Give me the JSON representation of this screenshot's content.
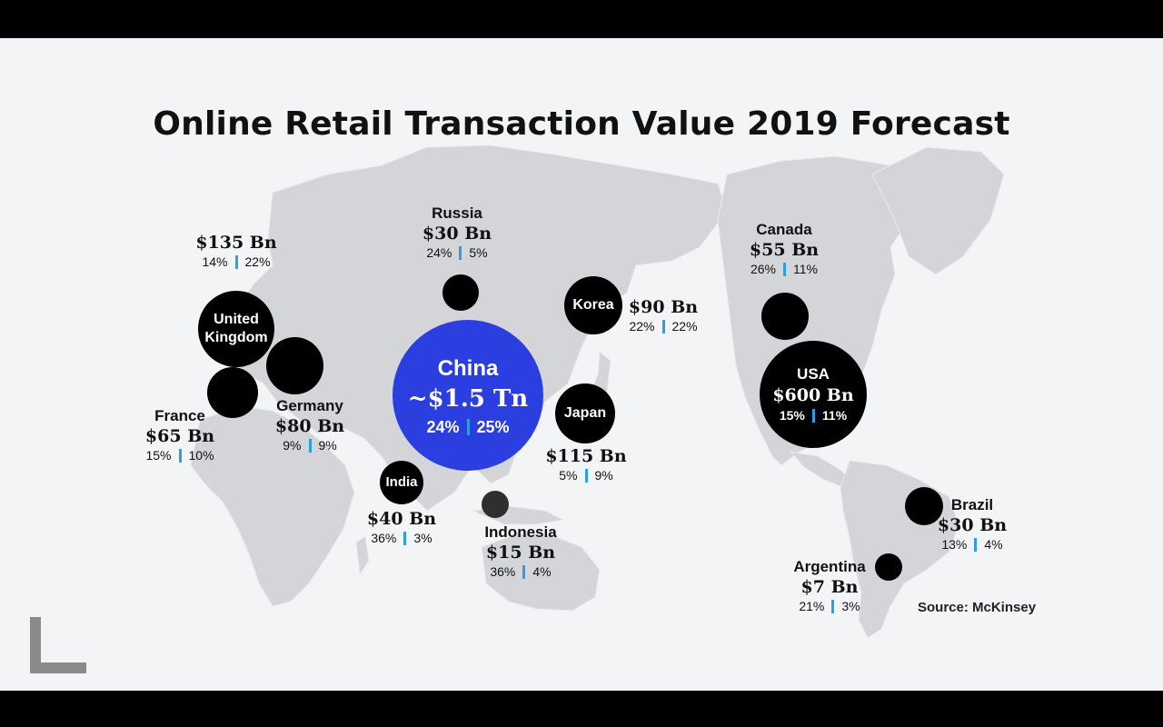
{
  "title": "Online Retail Transaction Value 2019 Forecast",
  "source": "Source: McKinsey",
  "colors": {
    "accent_bar": "#2a9fe6",
    "china_bubble": "#2b3fe0",
    "bubble": "#000000",
    "land": "#d3d5d8"
  },
  "markets": {
    "uk": {
      "name": "United Kingdom",
      "name_line1": "United",
      "name_line2": "Kingdom",
      "value": "$135 Bn",
      "pct_a": "14%",
      "pct_b": "22%"
    },
    "russia": {
      "name": "Russia",
      "value": "$30 Bn",
      "pct_a": "24%",
      "pct_b": "5%"
    },
    "korea": {
      "name": "Korea",
      "value": "$90 Bn",
      "pct_a": "22%",
      "pct_b": "22%"
    },
    "canada": {
      "name": "Canada",
      "value": "$55 Bn",
      "pct_a": "26%",
      "pct_b": "11%"
    },
    "china": {
      "name": "China",
      "value": "~$1.5 Tn",
      "pct_a": "24%",
      "pct_b": "25%"
    },
    "france": {
      "name": "France",
      "value": "$65 Bn",
      "pct_a": "15%",
      "pct_b": "10%"
    },
    "germany": {
      "name": "Germany",
      "value": "$80 Bn",
      "pct_a": "9%",
      "pct_b": "9%"
    },
    "japan": {
      "name": "Japan",
      "value": "$115 Bn",
      "pct_a": "5%",
      "pct_b": "9%"
    },
    "usa": {
      "name": "USA",
      "value": "$600 Bn",
      "pct_a": "15%",
      "pct_b": "11%"
    },
    "india": {
      "name": "India",
      "value": "$40 Bn",
      "pct_a": "36%",
      "pct_b": "3%"
    },
    "indonesia": {
      "name": "Indonesia",
      "value": "$15 Bn",
      "pct_a": "36%",
      "pct_b": "4%"
    },
    "brazil": {
      "name": "Brazil",
      "value": "$30 Bn",
      "pct_a": "13%",
      "pct_b": "4%"
    },
    "argentina": {
      "name": "Argentina",
      "value": "$7 Bn",
      "pct_a": "21%",
      "pct_b": "3%"
    }
  }
}
